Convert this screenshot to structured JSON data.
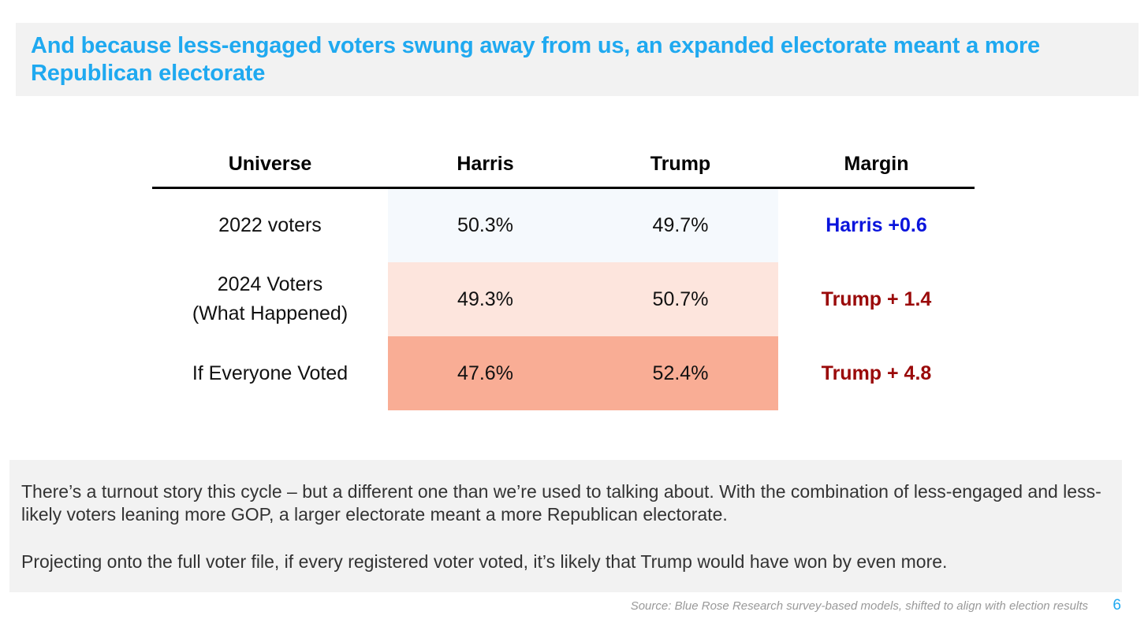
{
  "title": "And because less-engaged voters swung away from us, an expanded electorate meant a more Republican electorate",
  "table": {
    "headers": [
      "Universe",
      "Harris",
      "Trump",
      "Margin"
    ],
    "rows": [
      {
        "universe_line1": "2022 voters",
        "universe_line2": "",
        "harris": "50.3%",
        "trump": "49.7%",
        "margin": "Harris +0.6",
        "margin_color": "#0a14dc",
        "cell_color": "#f5f9fd"
      },
      {
        "universe_line1": "2024 Voters",
        "universe_line2": "(What Happened)",
        "harris": "49.3%",
        "trump": "50.7%",
        "margin": "Trump + 1.4",
        "margin_color": "#9a0a0a",
        "cell_color": "#fde5dd"
      },
      {
        "universe_line1": "If Everyone Voted",
        "universe_line2": "",
        "harris": "47.6%",
        "trump": "52.4%",
        "margin": "Trump + 4.8",
        "margin_color": "#9a0a0a",
        "cell_color": "#f9ad95"
      }
    ]
  },
  "footer": {
    "paragraph1": "There’s a turnout story this cycle – but a different one than we’re used to talking about. With the combination of less-engaged and less-likely voters leaning more GOP, a larger electorate meant a more Republican electorate.",
    "paragraph2": "Projecting onto the full voter file, if every registered voter voted, it’s likely that Trump would have won by even more."
  },
  "source": "Source: Blue Rose Research survey-based models, shifted to align with election results",
  "page_number": "6",
  "colors": {
    "accent": "#1fa9f0",
    "harris_blue": "#0a14dc",
    "trump_red": "#9a0a0a"
  }
}
